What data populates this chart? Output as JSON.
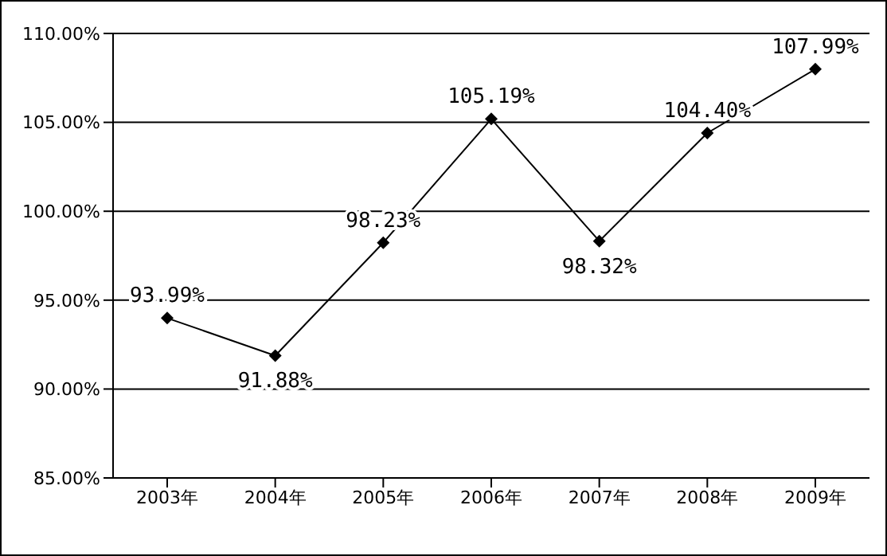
{
  "chart_data": {
    "type": "line",
    "categories": [
      "2003年",
      "2004年",
      "2005年",
      "2006年",
      "2007年",
      "2008年",
      "2009年"
    ],
    "values": [
      93.99,
      91.88,
      98.23,
      105.19,
      98.32,
      104.4,
      107.99
    ],
    "value_labels": [
      "93.99%",
      "91.88%",
      "98.23%",
      "105.19%",
      "98.32%",
      "104.40%",
      "107.99%"
    ],
    "color": "#000000",
    "marker": "diamond",
    "line_style": "solid",
    "grid": "y",
    "legend": false,
    "ylim": [
      85,
      110
    ],
    "yticks": [
      {
        "value": 85,
        "label": "85.00%"
      },
      {
        "value": 90,
        "label": "90.00%"
      },
      {
        "value": 95,
        "label": "95.00%"
      },
      {
        "value": 100,
        "label": "100.00%"
      },
      {
        "value": 105,
        "label": "105.00%"
      },
      {
        "value": 110,
        "label": "110.00%"
      }
    ]
  }
}
